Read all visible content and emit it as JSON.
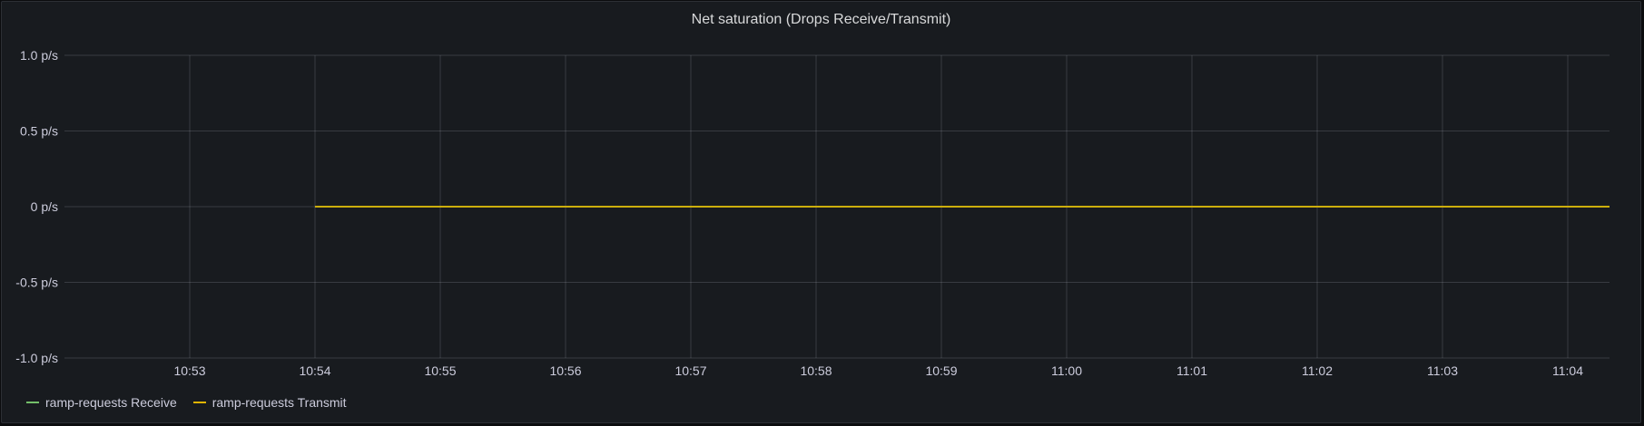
{
  "panel": {
    "title": "Net saturation (Drops Receive/Transmit)"
  },
  "chart_data": {
    "type": "line",
    "title": "Net saturation (Drops Receive/Transmit)",
    "xlabel": "",
    "ylabel": "",
    "x_ticks": [
      "10:53",
      "10:54",
      "10:55",
      "10:56",
      "10:57",
      "10:58",
      "10:59",
      "11:00",
      "11:01",
      "11:02",
      "11:03",
      "11:04"
    ],
    "y_ticks": [
      {
        "value": 1.0,
        "label": "1.0 p/s"
      },
      {
        "value": 0.5,
        "label": "0.5 p/s"
      },
      {
        "value": 0,
        "label": "0 p/s"
      },
      {
        "value": -0.5,
        "label": "-0.5 p/s"
      },
      {
        "value": -1.0,
        "label": "-1.0 p/s"
      }
    ],
    "ylim": [
      -1.0,
      1.0
    ],
    "xlim_minutes": [
      "10:52:00",
      "11:04:20"
    ],
    "grid": true,
    "legend_position": "bottom-left",
    "series": [
      {
        "name": "ramp-requests Receive",
        "color": "#73bf69",
        "x": [
          "10:54",
          "10:55",
          "10:56",
          "10:57",
          "10:58",
          "10:59",
          "11:00",
          "11:01",
          "11:02",
          "11:03",
          "11:04",
          "11:04:20"
        ],
        "values": [
          0,
          0,
          0,
          0,
          0,
          0,
          0,
          0,
          0,
          0,
          0,
          0
        ]
      },
      {
        "name": "ramp-requests Transmit",
        "color": "#e0b400",
        "x": [
          "10:54",
          "10:55",
          "10:56",
          "10:57",
          "10:58",
          "10:59",
          "11:00",
          "11:01",
          "11:02",
          "11:03",
          "11:04",
          "11:04:20"
        ],
        "values": [
          0,
          0,
          0,
          0,
          0,
          0,
          0,
          0,
          0,
          0,
          0,
          0
        ]
      }
    ]
  },
  "legend": {
    "items": [
      {
        "label": "ramp-requests Receive",
        "color": "#73bf69"
      },
      {
        "label": "ramp-requests Transmit",
        "color": "#e0b400"
      }
    ]
  }
}
